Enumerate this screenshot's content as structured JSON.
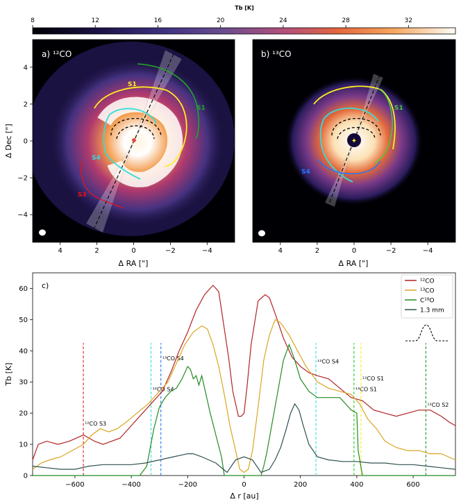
{
  "colorbar": {
    "label": "Tb [K]",
    "min": 8,
    "max": 35,
    "ticks": [
      "8",
      "12",
      "16",
      "20",
      "24",
      "28",
      "32"
    ],
    "tick_values": [
      8,
      12,
      16,
      20,
      24,
      28,
      32
    ]
  },
  "panel_a": {
    "title": "a) ¹²CO",
    "xlabel": "Δ RA [\"]",
    "ylabel": "Δ Dec [\"]",
    "xticks": [
      "4",
      "2",
      "0",
      "−2",
      "−4"
    ],
    "yticks": [
      "4",
      "2",
      "0",
      "−2",
      "−4"
    ],
    "labels": {
      "s1_yellow": "S1",
      "s1_green": "S1",
      "s4": "S4",
      "s3": "S3"
    }
  },
  "panel_b": {
    "title": "b) ¹³CO",
    "xlabel": "Δ RA [\"]",
    "xticks": [
      "4",
      "2",
      "0",
      "−2",
      "−4"
    ],
    "labels": {
      "s1": "S1",
      "s4": "S4"
    }
  },
  "chart_data": {
    "type": "line",
    "title": "c)",
    "xlabel": "Δ r [au]",
    "ylabel": "Tb [K]",
    "xlim": [
      -750,
      750
    ],
    "ylim": [
      0,
      65
    ],
    "xticks": [
      -600,
      -400,
      -200,
      0,
      200,
      400,
      600
    ],
    "xtick_labels": [
      "−600",
      "−400",
      "−200",
      "0",
      "200",
      "400",
      "600"
    ],
    "yticks": [
      0,
      10,
      20,
      30,
      40,
      50,
      60
    ],
    "ytick_labels": [
      "0",
      "10",
      "20",
      "30",
      "40",
      "50",
      "60"
    ],
    "legend_position": "top-right",
    "series": [
      {
        "name": "¹²CO",
        "color": "#b22222",
        "x": [
          -750,
          -730,
          -700,
          -660,
          -620,
          -570,
          -530,
          -500,
          -470,
          -440,
          -400,
          -360,
          -320,
          -290,
          -260,
          -230,
          -200,
          -170,
          -140,
          -110,
          -90,
          -75,
          -55,
          -40,
          -20,
          -10,
          0,
          10,
          25,
          50,
          75,
          90,
          110,
          140,
          170,
          200,
          230,
          260,
          300,
          340,
          380,
          420,
          460,
          500,
          540,
          580,
          620,
          660,
          700,
          730,
          750
        ],
        "y": [
          5,
          10,
          11,
          10,
          11,
          13,
          11,
          10,
          11,
          12,
          16,
          20,
          24,
          27,
          33,
          40,
          46,
          53,
          58,
          61,
          59,
          50,
          38,
          27,
          19,
          19,
          20,
          28,
          42,
          56,
          58,
          57,
          52,
          44,
          38,
          35,
          33,
          32,
          31,
          28,
          25,
          24,
          21,
          20,
          19,
          20,
          21,
          21,
          19,
          17,
          16
        ]
      },
      {
        "name": "¹³CO",
        "color": "#daa520",
        "x": [
          -750,
          -720,
          -690,
          -650,
          -610,
          -570,
          -540,
          -510,
          -480,
          -450,
          -420,
          -380,
          -340,
          -300,
          -270,
          -240,
          -210,
          -180,
          -150,
          -130,
          -110,
          -90,
          -70,
          -50,
          -30,
          -15,
          0,
          15,
          30,
          50,
          70,
          90,
          110,
          130,
          160,
          190,
          220,
          260,
          300,
          340,
          380,
          410,
          440,
          470,
          500,
          540,
          580,
          620,
          660,
          700,
          750
        ],
        "y": [
          2,
          4,
          5,
          6,
          8,
          10,
          13,
          15,
          14,
          15,
          17,
          20,
          23,
          27,
          30,
          36,
          42,
          46,
          48,
          47,
          42,
          35,
          26,
          16,
          8,
          2,
          1,
          2,
          8,
          22,
          37,
          45,
          50,
          49,
          45,
          40,
          35,
          30,
          28,
          27,
          26,
          23,
          18,
          15,
          11,
          9,
          8,
          8,
          7,
          7,
          5
        ]
      },
      {
        "name": "C¹⁸O",
        "color": "#228b22",
        "x": [
          -750,
          -600,
          -400,
          -370,
          -345,
          -320,
          -300,
          -280,
          -260,
          -240,
          -220,
          -200,
          -190,
          -180,
          -170,
          -160,
          -150,
          -140,
          -120,
          -100,
          -80,
          -70,
          -50,
          -30,
          -10,
          0,
          10,
          30,
          50,
          60,
          70,
          80,
          100,
          120,
          140,
          160,
          180,
          200,
          230,
          260,
          300,
          340,
          380,
          400,
          405,
          420,
          460,
          500,
          600,
          750
        ],
        "y": [
          0,
          0,
          0,
          0,
          3,
          15,
          22,
          25,
          27,
          28,
          31,
          35,
          34,
          31,
          32,
          29,
          32,
          28,
          20,
          13,
          6,
          0,
          0,
          0,
          0,
          0,
          0,
          0,
          0,
          0,
          3,
          7,
          17,
          27,
          37,
          42,
          37,
          31,
          27,
          25,
          25,
          25,
          21,
          20,
          8,
          0,
          0,
          0,
          0,
          0
        ]
      },
      {
        "name": "1.3 mm",
        "color": "#2f4f4f",
        "x": [
          -750,
          -700,
          -650,
          -600,
          -550,
          -500,
          -450,
          -400,
          -350,
          -300,
          -250,
          -200,
          -180,
          -150,
          -100,
          -60,
          -30,
          0,
          30,
          60,
          90,
          110,
          130,
          150,
          165,
          180,
          195,
          210,
          230,
          260,
          300,
          350,
          400,
          450,
          500,
          550,
          600,
          650,
          700,
          750
        ],
        "y": [
          3,
          2.5,
          2,
          2,
          3,
          3.5,
          3.5,
          3.5,
          4,
          5,
          6,
          7,
          7,
          6,
          4,
          1,
          5,
          6,
          5,
          1,
          2,
          5,
          9,
          15,
          20,
          23,
          21,
          16,
          10,
          6,
          5,
          4.5,
          4.5,
          4,
          4,
          3.5,
          3.5,
          3,
          2.5,
          2
        ]
      }
    ],
    "beam_profile_label": "",
    "vlines": [
      {
        "x": -570,
        "color": "#dd2222",
        "label": "¹²CO S3",
        "label_x": -565,
        "label_y": 16
      },
      {
        "x": -330,
        "color": "#33dddd",
        "label": "¹²CO S4",
        "label_x": -325,
        "label_y": 27
      },
      {
        "x": -295,
        "color": "#2277ff",
        "label": "¹³CO S4",
        "label_x": -290,
        "label_y": 37
      },
      {
        "x": 255,
        "color": "#33dddd",
        "label": "¹²CO S4",
        "label_x": 260,
        "label_y": 36
      },
      {
        "x": 390,
        "color": "#22cc22",
        "label": "¹³CO S1",
        "label_x": 395,
        "label_y": 27
      },
      {
        "x": 415,
        "color": "#eeee22",
        "label": "¹²CO S1",
        "label_x": 420,
        "label_y": 30.5
      },
      {
        "x": 645,
        "color": "#229922",
        "label": "¹²CO S2",
        "label_x": 650,
        "label_y": 22
      }
    ]
  }
}
